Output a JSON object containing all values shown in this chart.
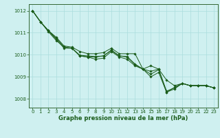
{
  "title": "Graphe pression niveau de la mer (hPa)",
  "background_color": "#cff0f0",
  "grid_color": "#aadddd",
  "line_color": "#1a5c1a",
  "spine_color": "#336633",
  "ylim": [
    1007.6,
    1012.3
  ],
  "xlim": [
    -0.5,
    23.5
  ],
  "yticks": [
    1008,
    1009,
    1010,
    1011,
    1012
  ],
  "xticks": [
    0,
    1,
    2,
    3,
    4,
    5,
    6,
    7,
    8,
    9,
    10,
    11,
    12,
    13,
    14,
    15,
    16,
    17,
    18,
    19,
    20,
    21,
    22,
    23
  ],
  "tick_fontsize": 5.0,
  "label_fontsize": 6.0,
  "series": [
    [
      1012.0,
      1011.5,
      1011.1,
      1010.8,
      1010.4,
      1010.35,
      1010.15,
      1010.05,
      1010.05,
      1010.1,
      1010.3,
      1010.05,
      1010.05,
      1010.05,
      1009.35,
      1009.5,
      1009.35,
      1008.85,
      1008.6,
      1008.7,
      1008.6,
      1008.6,
      1008.6,
      1008.5
    ],
    [
      1012.0,
      1011.5,
      1011.1,
      1010.75,
      1010.35,
      1010.3,
      1009.95,
      1009.9,
      1009.9,
      1009.95,
      1010.2,
      1009.95,
      1009.9,
      1009.55,
      1009.35,
      1009.25,
      1009.35,
      1008.35,
      1008.5,
      1008.7,
      1008.6,
      1008.6,
      1008.6,
      1008.5
    ],
    [
      1012.0,
      1011.5,
      1011.05,
      1010.65,
      1010.35,
      1010.3,
      1009.95,
      1009.9,
      1009.8,
      1009.85,
      1010.15,
      1009.9,
      1009.8,
      1009.5,
      1009.35,
      1009.0,
      1009.2,
      1008.3,
      1008.45,
      1008.7,
      1008.6,
      1008.6,
      1008.6,
      1008.5
    ],
    [
      1012.0,
      1011.5,
      1011.1,
      1010.7,
      1010.3,
      1010.3,
      1009.98,
      1009.95,
      1009.92,
      1009.95,
      1010.22,
      1009.95,
      1009.92,
      1009.58,
      1009.35,
      1009.12,
      1009.32,
      1008.3,
      1008.52,
      1008.7,
      1008.6,
      1008.6,
      1008.6,
      1008.5
    ]
  ]
}
